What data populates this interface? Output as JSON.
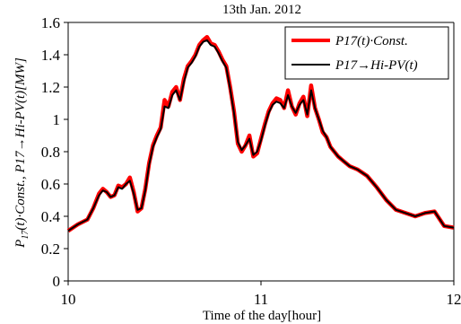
{
  "chart_data": {
    "type": "line",
    "title": "13th Jan. 2012",
    "xlabel": "Time of the day[hour]",
    "ylabel_parts": {
      "p1": "P",
      "p1_sub": "17",
      "p2": "(t)·Const., P17→Hi-PV(t)[MW]"
    },
    "xlim": [
      10,
      12
    ],
    "ylim": [
      0,
      1.6
    ],
    "x_ticks": [
      "10",
      "11",
      "12"
    ],
    "y_ticks": [
      "0",
      "0.2",
      "0.4",
      "0.6",
      "0.8",
      "1",
      "1.2",
      "1.4",
      "1.6"
    ],
    "legend_position": "top-right",
    "grid": false,
    "series": [
      {
        "name": "P17(t)·Const.",
        "color": "#ff0000",
        "x": [
          10.0,
          10.05,
          10.1,
          10.13,
          10.16,
          10.18,
          10.2,
          10.22,
          10.24,
          10.26,
          10.28,
          10.3,
          10.32,
          10.34,
          10.36,
          10.38,
          10.4,
          10.42,
          10.44,
          10.46,
          10.48,
          10.5,
          10.52,
          10.54,
          10.56,
          10.58,
          10.6,
          10.62,
          10.64,
          10.66,
          10.68,
          10.7,
          10.72,
          10.74,
          10.76,
          10.78,
          10.8,
          10.82,
          10.84,
          10.86,
          10.88,
          10.9,
          10.92,
          10.94,
          10.96,
          10.98,
          11.0,
          11.02,
          11.04,
          11.06,
          11.08,
          11.1,
          11.12,
          11.14,
          11.16,
          11.18,
          11.2,
          11.22,
          11.24,
          11.26,
          11.28,
          11.3,
          11.32,
          11.34,
          11.36,
          11.38,
          11.4,
          11.43,
          11.46,
          11.5,
          11.55,
          11.6,
          11.65,
          11.7,
          11.75,
          11.8,
          11.85,
          11.9,
          11.95,
          12.0
        ],
        "y": [
          0.31,
          0.35,
          0.38,
          0.45,
          0.54,
          0.57,
          0.55,
          0.52,
          0.53,
          0.59,
          0.58,
          0.6,
          0.64,
          0.55,
          0.43,
          0.45,
          0.57,
          0.73,
          0.84,
          0.9,
          0.95,
          1.12,
          1.08,
          1.17,
          1.2,
          1.12,
          1.25,
          1.33,
          1.36,
          1.4,
          1.46,
          1.49,
          1.51,
          1.47,
          1.46,
          1.42,
          1.37,
          1.33,
          1.2,
          1.05,
          0.85,
          0.8,
          0.84,
          0.9,
          0.77,
          0.79,
          0.88,
          0.97,
          1.05,
          1.1,
          1.13,
          1.12,
          1.07,
          1.18,
          1.08,
          1.03,
          1.1,
          1.14,
          1.02,
          1.21,
          1.07,
          1.0,
          0.92,
          0.89,
          0.83,
          0.8,
          0.77,
          0.74,
          0.71,
          0.69,
          0.65,
          0.58,
          0.5,
          0.44,
          0.42,
          0.4,
          0.42,
          0.43,
          0.34,
          0.33
        ]
      },
      {
        "name": "P17→Hi-PV(t)",
        "color": "#000000",
        "x": [
          10.0,
          10.05,
          10.1,
          10.13,
          10.16,
          10.18,
          10.2,
          10.22,
          10.24,
          10.26,
          10.28,
          10.3,
          10.32,
          10.34,
          10.36,
          10.38,
          10.4,
          10.42,
          10.44,
          10.46,
          10.48,
          10.5,
          10.52,
          10.54,
          10.56,
          10.58,
          10.6,
          10.62,
          10.64,
          10.66,
          10.68,
          10.7,
          10.72,
          10.74,
          10.76,
          10.78,
          10.8,
          10.82,
          10.84,
          10.86,
          10.88,
          10.9,
          10.92,
          10.94,
          10.96,
          10.98,
          11.0,
          11.02,
          11.04,
          11.06,
          11.08,
          11.1,
          11.12,
          11.14,
          11.16,
          11.18,
          11.2,
          11.22,
          11.24,
          11.26,
          11.28,
          11.3,
          11.32,
          11.34,
          11.36,
          11.38,
          11.4,
          11.43,
          11.46,
          11.5,
          11.55,
          11.6,
          11.65,
          11.7,
          11.75,
          11.8,
          11.85,
          11.9,
          11.95,
          12.0
        ],
        "y": [
          0.31,
          0.35,
          0.38,
          0.45,
          0.53,
          0.56,
          0.55,
          0.52,
          0.53,
          0.58,
          0.57,
          0.6,
          0.62,
          0.54,
          0.44,
          0.45,
          0.56,
          0.72,
          0.83,
          0.89,
          0.94,
          1.08,
          1.07,
          1.15,
          1.18,
          1.12,
          1.23,
          1.32,
          1.35,
          1.39,
          1.45,
          1.48,
          1.49,
          1.46,
          1.45,
          1.41,
          1.36,
          1.32,
          1.19,
          1.04,
          0.86,
          0.81,
          0.84,
          0.88,
          0.78,
          0.8,
          0.87,
          0.96,
          1.04,
          1.09,
          1.11,
          1.1,
          1.07,
          1.15,
          1.08,
          1.04,
          1.09,
          1.12,
          1.03,
          1.18,
          1.07,
          1.0,
          0.93,
          0.89,
          0.83,
          0.8,
          0.77,
          0.74,
          0.71,
          0.69,
          0.65,
          0.58,
          0.5,
          0.44,
          0.42,
          0.4,
          0.42,
          0.43,
          0.34,
          0.33
        ]
      }
    ]
  }
}
